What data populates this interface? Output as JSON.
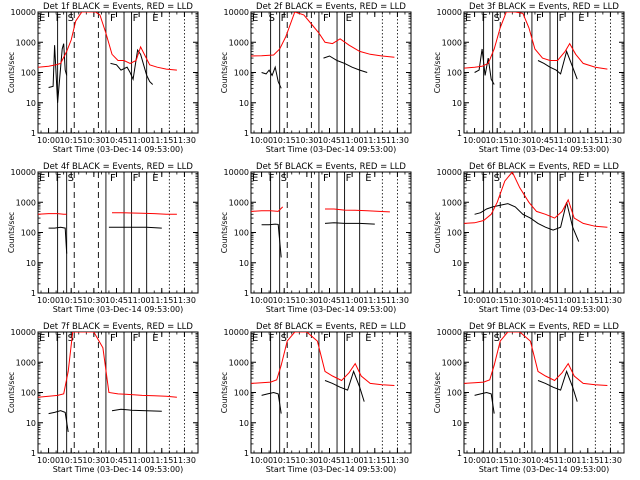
{
  "chart_data": [
    {
      "type": "line",
      "title": "Det 1f BLACK = Events, RED = LLD",
      "ylabel": "Counts/sec",
      "xlabel": "Start Time (03-Dec-14 09:53:00)",
      "xlim": [
        "09:53",
        "11:39"
      ],
      "ylim": [
        1,
        10000
      ],
      "yscale": "log",
      "xticks": [
        "10:00",
        "10:15",
        "10:30",
        "10:45",
        "11:00",
        "11:15",
        "11:30"
      ],
      "yticks": [
        "1",
        "10",
        "100",
        "1000",
        "10000"
      ],
      "markers": [
        "E",
        "F",
        "S",
        "F",
        "F",
        "E"
      ],
      "line_color_events": "#000000",
      "line_color_lld": "#ff0000",
      "series": [
        {
          "name": "Events",
          "color": "#000000",
          "x": [
            "10:00",
            "10:03",
            "10:04",
            "10:06",
            "10:09",
            "10:10",
            "10:11",
            "10:12",
            "10:20",
            "10:21",
            "10:22",
            "10:23",
            "10:24",
            "10:38",
            "10:41",
            "10:45",
            "10:48",
            "10:52",
            "10:54",
            "10:56",
            "10:59",
            "11:01",
            "11:05",
            "11:07",
            "11:09"
          ],
          "values": [
            32,
            35,
            800,
            10,
            600,
            900,
            120,
            80,
            null,
            null,
            null,
            null,
            null,
            null,
            200,
            180,
            120,
            150,
            100,
            60,
            550,
            400,
            80,
            50,
            40
          ]
        },
        {
          "name": "LLD",
          "color": "#ff0000",
          "x": [
            "09:53",
            "10:00",
            "10:05",
            "10:08",
            "10:12",
            "10:15",
            "10:18",
            "10:22",
            "10:27",
            "10:31",
            "10:34",
            "10:38",
            "10:42",
            "10:46",
            "10:50",
            "10:54",
            "10:58",
            "11:01",
            "11:04",
            "11:07",
            "11:12",
            "11:18",
            "11:25"
          ],
          "values": [
            150,
            160,
            180,
            200,
            500,
            1200,
            5000,
            10000,
            10000,
            10000,
            8000,
            2000,
            400,
            250,
            250,
            200,
            250,
            700,
            350,
            180,
            150,
            130,
            120
          ]
        }
      ]
    },
    {
      "type": "line",
      "title": "Det 2f BLACK = Events, RED = LLD",
      "ylabel": "Counts/sec",
      "xlabel": "Start Time (03-Dec-14 09:53:00)",
      "xlim": [
        "09:53",
        "11:39"
      ],
      "ylim": [
        1,
        10000
      ],
      "yscale": "log",
      "xticks": [
        "10:00",
        "10:15",
        "10:30",
        "10:45",
        "11:00",
        "11:15",
        "11:30"
      ],
      "yticks": [
        "1",
        "10",
        "100",
        "1000",
        "10000"
      ],
      "markers": [
        "E",
        "S",
        "F",
        "F",
        "E"
      ],
      "series": [
        {
          "name": "Events",
          "color": "#000000",
          "x": [
            "10:00",
            "10:03",
            "10:05",
            "10:07",
            "10:09",
            "10:11",
            "10:13",
            "10:38",
            "10:41",
            "10:45",
            "10:50",
            "10:55",
            "11:00",
            "11:05",
            "11:10"
          ],
          "values": [
            100,
            90,
            120,
            80,
            150,
            50,
            30,
            null,
            300,
            350,
            250,
            200,
            150,
            120,
            100
          ]
        },
        {
          "name": "LLD",
          "color": "#ff0000",
          "x": [
            "09:53",
            "10:00",
            "10:08",
            "10:12",
            "10:16",
            "10:22",
            "10:28",
            "10:33",
            "10:38",
            "10:42",
            "10:47",
            "10:52",
            "10:58",
            "11:05",
            "11:12",
            "11:20",
            "11:28"
          ],
          "values": [
            350,
            360,
            380,
            600,
            1500,
            10000,
            8000,
            4000,
            2000,
            1000,
            900,
            1300,
            800,
            500,
            400,
            350,
            320
          ]
        }
      ]
    },
    {
      "type": "line",
      "title": "Det 3f BLACK = Events, RED = LLD",
      "ylabel": "Counts/sec",
      "xlabel": "Start Time (03-Dec-14 09:53:00)",
      "xlim": [
        "09:53",
        "11:39"
      ],
      "ylim": [
        1,
        10000
      ],
      "yscale": "log",
      "xticks": [
        "10:00",
        "10:15",
        "10:30",
        "10:45",
        "11:00",
        "11:15",
        "11:30"
      ],
      "yticks": [
        "1",
        "10",
        "100",
        "1000",
        "10000"
      ],
      "markers": [
        "E",
        "F",
        "S",
        "F",
        "F",
        "E"
      ],
      "series": [
        {
          "name": "Events",
          "color": "#000000",
          "x": [
            "10:00",
            "10:03",
            "10:05",
            "10:07",
            "10:09",
            "10:11",
            "10:13",
            "10:39",
            "10:42",
            "10:46",
            "10:50",
            "10:54",
            "10:57",
            "11:01",
            "11:05",
            "11:08"
          ],
          "values": [
            100,
            120,
            600,
            80,
            300,
            60,
            40,
            null,
            250,
            200,
            150,
            120,
            90,
            500,
            150,
            60
          ]
        },
        {
          "name": "LLD",
          "color": "#ff0000",
          "x": [
            "09:53",
            "10:00",
            "10:05",
            "10:09",
            "10:13",
            "10:17",
            "10:21",
            "10:27",
            "10:32",
            "10:36",
            "10:40",
            "10:45",
            "10:50",
            "10:55",
            "11:00",
            "11:03",
            "11:07",
            "11:12",
            "11:20",
            "11:28"
          ],
          "values": [
            140,
            150,
            160,
            200,
            600,
            3000,
            10000,
            10000,
            9000,
            3000,
            600,
            300,
            250,
            250,
            500,
            900,
            400,
            200,
            150,
            130
          ]
        }
      ]
    },
    {
      "type": "line",
      "title": "Det 4f BLACK = Events, RED = LLD",
      "ylabel": "Counts/sec",
      "xlabel": "Start Time (03-Dec-14 09:53:00)",
      "xlim": [
        "09:53",
        "11:39"
      ],
      "ylim": [
        1,
        10000
      ],
      "yscale": "log",
      "xticks": [
        "10:00",
        "10:15",
        "10:30",
        "10:45",
        "11:00",
        "11:15",
        "11:30"
      ],
      "yticks": [
        "1",
        "10",
        "100",
        "1000",
        "10000"
      ],
      "markers": [
        "E",
        "F",
        "S",
        "F",
        "F",
        "E"
      ],
      "series": [
        {
          "name": "Events",
          "color": "#000000",
          "x": [
            "10:00",
            "10:04",
            "10:08",
            "10:11",
            "10:12",
            "10:38",
            "10:40",
            "10:45",
            "10:55",
            "11:05",
            "11:15"
          ],
          "values": [
            140,
            140,
            150,
            140,
            20,
            null,
            150,
            150,
            150,
            150,
            140
          ]
        },
        {
          "name": "LLD",
          "color": "#ff0000",
          "x": [
            "09:53",
            "10:00",
            "10:06",
            "10:10",
            "10:12",
            "10:38",
            "10:42",
            "10:48",
            "10:55",
            "11:02",
            "11:10",
            "11:18",
            "11:25"
          ],
          "values": [
            400,
            420,
            420,
            400,
            400,
            null,
            450,
            450,
            440,
            430,
            420,
            400,
            400
          ]
        }
      ]
    },
    {
      "type": "line",
      "title": "Det 5f BLACK = Events, RED = LLD",
      "ylabel": "Counts/sec",
      "xlabel": "Start Time (03-Dec-14 09:53:00)",
      "xlim": [
        "09:53",
        "11:39"
      ],
      "ylim": [
        1,
        10000
      ],
      "yscale": "log",
      "xticks": [
        "10:00",
        "10:15",
        "10:30",
        "10:45",
        "11:00",
        "11:15",
        "11:30"
      ],
      "yticks": [
        "1",
        "10",
        "100",
        "1000",
        "10000"
      ],
      "markers": [
        "E",
        "F",
        "S",
        "F",
        "F",
        "E"
      ],
      "series": [
        {
          "name": "Events",
          "color": "#000000",
          "x": [
            "10:00",
            "10:05",
            "10:09",
            "10:11",
            "10:13",
            "10:38",
            "10:42",
            "10:48",
            "10:55",
            "11:05",
            "11:15"
          ],
          "values": [
            180,
            180,
            190,
            185,
            15,
            null,
            200,
            210,
            200,
            200,
            190
          ]
        },
        {
          "name": "LLD",
          "color": "#ff0000",
          "x": [
            "09:53",
            "10:00",
            "10:06",
            "10:11",
            "10:14",
            "10:38",
            "10:42",
            "10:48",
            "10:55",
            "11:02",
            "11:10",
            "11:18",
            "11:25"
          ],
          "values": [
            500,
            520,
            520,
            500,
            700,
            null,
            600,
            600,
            550,
            540,
            520,
            500,
            480
          ]
        }
      ]
    },
    {
      "type": "line",
      "title": "Det 6f BLACK = Events, RED = LLD",
      "ylabel": "Counts/sec",
      "xlabel": "Start Time (03-Dec-14 09:53:00)",
      "xlim": [
        "09:53",
        "11:39"
      ],
      "ylim": [
        1,
        10000
      ],
      "yscale": "log",
      "xticks": [
        "10:00",
        "10:15",
        "10:30",
        "10:45",
        "11:00",
        "11:15",
        "11:30"
      ],
      "yticks": [
        "1",
        "10",
        "100",
        "1000",
        "10000"
      ],
      "markers": [
        "E",
        "F",
        "S",
        "F",
        "F",
        "E"
      ],
      "series": [
        {
          "name": "Events",
          "color": "#000000",
          "x": [
            "10:00",
            "10:04",
            "10:08",
            "10:12",
            "10:17",
            "10:22",
            "10:27",
            "10:32",
            "10:37",
            "10:42",
            "10:47",
            "10:52",
            "10:57",
            "11:01",
            "11:05",
            "11:09"
          ],
          "values": [
            400,
            450,
            600,
            700,
            800,
            900,
            700,
            400,
            300,
            200,
            150,
            120,
            150,
            1000,
            150,
            50
          ]
        },
        {
          "name": "LLD",
          "color": "#ff0000",
          "x": [
            "09:53",
            "10:00",
            "10:06",
            "10:11",
            "10:15",
            "10:20",
            "10:25",
            "10:30",
            "10:36",
            "10:41",
            "10:47",
            "10:53",
            "10:58",
            "11:02",
            "11:06",
            "11:12",
            "11:20",
            "11:28"
          ],
          "values": [
            200,
            210,
            250,
            400,
            1000,
            5000,
            10000,
            3000,
            1000,
            500,
            400,
            300,
            500,
            1200,
            300,
            200,
            160,
            150
          ]
        }
      ]
    },
    {
      "type": "line",
      "title": "Det 7f BLACK = Events, RED = LLD",
      "ylabel": "Counts/sec",
      "xlabel": "Start Time (03-Dec-14 09:53:00)",
      "xlim": [
        "09:53",
        "11:39"
      ],
      "ylim": [
        1,
        10000
      ],
      "yscale": "log",
      "xticks": [
        "10:00",
        "10:15",
        "10:30",
        "10:45",
        "11:00",
        "11:15",
        "11:30"
      ],
      "yticks": [
        "1",
        "10",
        "100",
        "1000",
        "10000"
      ],
      "markers": [
        "E",
        "F",
        "S",
        "F",
        "F",
        "E"
      ],
      "series": [
        {
          "name": "Events",
          "color": "#000000",
          "x": [
            "10:00",
            "10:04",
            "10:08",
            "10:11",
            "10:13",
            "10:38",
            "10:42",
            "10:48",
            "10:55",
            "11:05",
            "11:15"
          ],
          "values": [
            20,
            22,
            25,
            22,
            5,
            null,
            25,
            28,
            26,
            25,
            24
          ]
        },
        {
          "name": "LLD",
          "color": "#ff0000",
          "x": [
            "09:53",
            "10:00",
            "10:06",
            "10:10",
            "10:13",
            "10:16",
            "10:22",
            "10:30",
            "10:36",
            "10:40",
            "10:46",
            "10:55",
            "11:02",
            "11:10",
            "11:18",
            "11:25"
          ],
          "values": [
            70,
            75,
            80,
            90,
            500,
            10000,
            10000,
            10000,
            3000,
            100,
            90,
            85,
            80,
            78,
            75,
            70
          ]
        }
      ]
    },
    {
      "type": "line",
      "title": "Det 8f BLACK = Events, RED = LLD",
      "ylabel": "Counts/sec",
      "xlabel": "Start Time (03-Dec-14 09:53:00)",
      "xlim": [
        "09:53",
        "11:39"
      ],
      "ylim": [
        1,
        10000
      ],
      "yscale": "log",
      "xticks": [
        "10:00",
        "10:15",
        "10:30",
        "10:45",
        "11:00",
        "11:15",
        "11:30"
      ],
      "yticks": [
        "1",
        "10",
        "100",
        "1000",
        "10000"
      ],
      "markers": [
        "E",
        "F",
        "S",
        "F",
        "F",
        "E"
      ],
      "series": [
        {
          "name": "Events",
          "color": "#000000",
          "x": [
            "10:00",
            "10:04",
            "10:08",
            "10:11",
            "10:13",
            "10:39",
            "10:42",
            "10:47",
            "10:52",
            "10:57",
            "11:01",
            "11:05",
            "11:08"
          ],
          "values": [
            80,
            90,
            100,
            90,
            20,
            null,
            250,
            200,
            150,
            120,
            500,
            150,
            50
          ]
        },
        {
          "name": "LLD",
          "color": "#ff0000",
          "x": [
            "09:53",
            "10:00",
            "10:06",
            "10:10",
            "10:13",
            "10:17",
            "10:22",
            "10:30",
            "10:37",
            "10:42",
            "10:47",
            "10:53",
            "10:58",
            "11:02",
            "11:06",
            "11:12",
            "11:20",
            "11:28"
          ],
          "values": [
            200,
            210,
            220,
            260,
            800,
            5000,
            10000,
            10000,
            5000,
            500,
            350,
            250,
            450,
            900,
            350,
            200,
            180,
            170
          ]
        }
      ]
    },
    {
      "type": "line",
      "title": "Det 9f BLACK = Events, RED = LLD",
      "ylabel": "Counts/sec",
      "xlabel": "Start Time (03-Dec-14 09:53:00)",
      "xlim": [
        "09:53",
        "11:39"
      ],
      "ylim": [
        1,
        10000
      ],
      "yscale": "log",
      "xticks": [
        "10:00",
        "10:15",
        "10:30",
        "10:45",
        "11:00",
        "11:15",
        "11:30"
      ],
      "yticks": [
        "1",
        "10",
        "100",
        "1000",
        "10000"
      ],
      "markers": [
        "E",
        "F",
        "S",
        "F",
        "F",
        "E"
      ],
      "series": [
        {
          "name": "Events",
          "color": "#000000",
          "x": [
            "10:00",
            "10:04",
            "10:08",
            "10:11",
            "10:13",
            "10:39",
            "10:42",
            "10:47",
            "10:52",
            "10:57",
            "11:01",
            "11:05",
            "11:08"
          ],
          "values": [
            80,
            90,
            100,
            90,
            20,
            null,
            250,
            200,
            150,
            120,
            500,
            150,
            50
          ]
        },
        {
          "name": "LLD",
          "color": "#ff0000",
          "x": [
            "09:53",
            "10:00",
            "10:06",
            "10:10",
            "10:13",
            "10:17",
            "10:22",
            "10:30",
            "10:37",
            "10:42",
            "10:47",
            "10:53",
            "10:58",
            "11:02",
            "11:06",
            "11:12",
            "11:20",
            "11:28"
          ],
          "values": [
            200,
            210,
            220,
            260,
            800,
            5000,
            10000,
            10000,
            5000,
            500,
            350,
            250,
            450,
            900,
            350,
            200,
            180,
            170
          ]
        }
      ]
    }
  ]
}
